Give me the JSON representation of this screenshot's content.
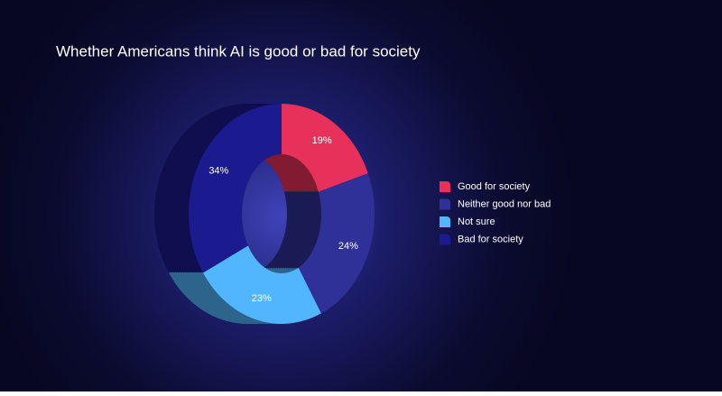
{
  "chart_data": {
    "type": "donut",
    "title": "Whether Americans think AI is good or bad for society",
    "categories": [
      "Good for society",
      "Neither good nor bad",
      "Not sure",
      "Bad for society"
    ],
    "values": [
      19,
      24,
      23,
      34
    ],
    "value_labels": [
      "19%",
      "24%",
      "23%",
      "34%"
    ],
    "colors": [
      "#e8315a",
      "#2f3199",
      "#52b6ff",
      "#1b1a8e"
    ],
    "legend": "right"
  }
}
